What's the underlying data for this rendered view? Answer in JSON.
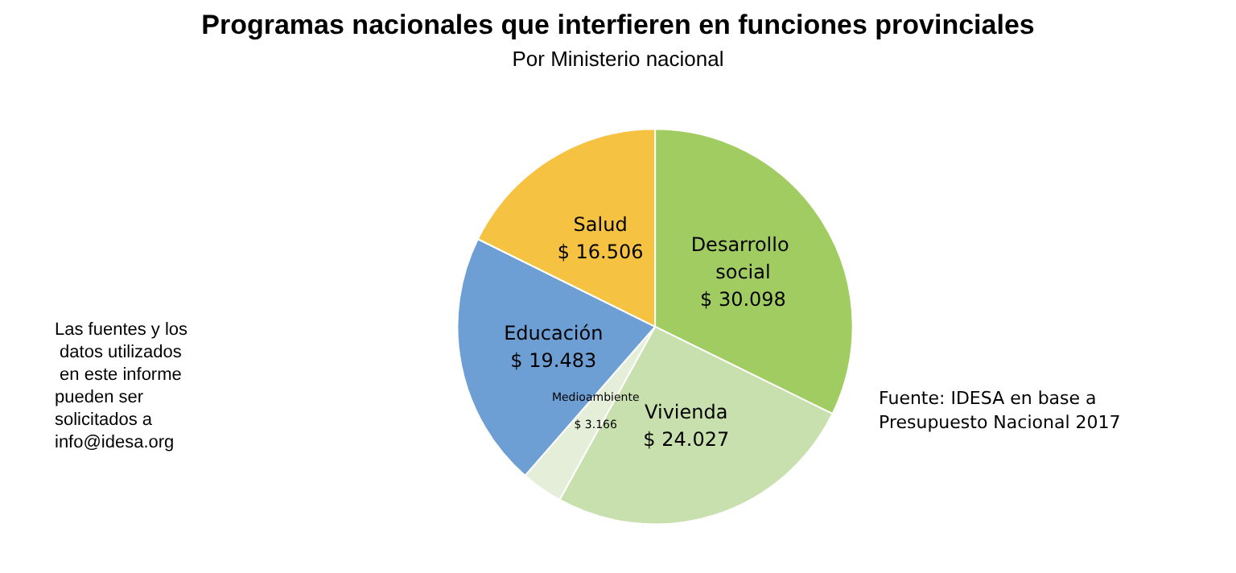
{
  "chart_data": {
    "type": "pie",
    "title": "Programas nacionales que interfieren en funciones provinciales",
    "subtitle": "Por Ministerio nacional",
    "categories": [
      "Desarrollo social",
      "Vivienda",
      "Medioambiente",
      "Educación",
      "Salud"
    ],
    "values": [
      30098,
      24027,
      3166,
      19483,
      16506
    ],
    "value_labels": [
      "$ 30.098",
      "$ 24.027",
      "$ 3.166",
      "$ 19.483",
      "$ 16.506"
    ],
    "colors": [
      "#a0cc62",
      "#c8e0ae",
      "#e4eed8",
      "#6d9fd4",
      "#f5c242"
    ],
    "legend": false,
    "annotations": [
      "Las fuentes y los datos utilizados en este informe pueden ser solicitados a info@idesa.org",
      "Fuente: IDESA en base a Presupuesto Nacional 2017"
    ]
  }
}
